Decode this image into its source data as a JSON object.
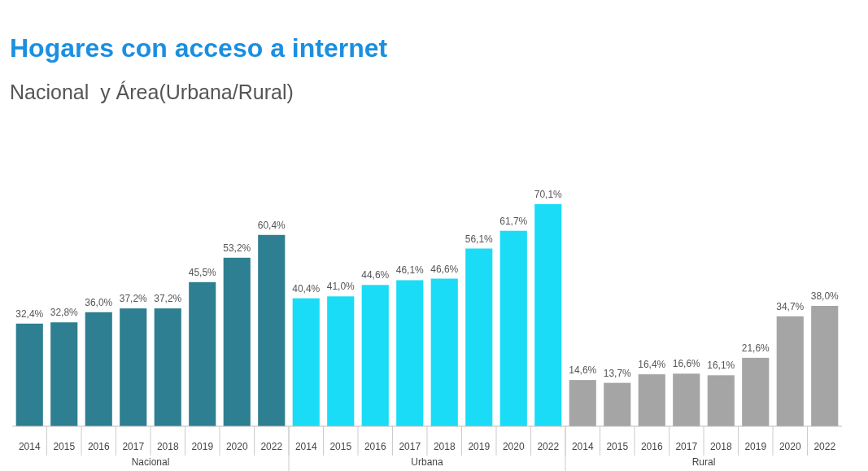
{
  "chart_data": {
    "type": "bar",
    "title": "Hogares con acceso a internet",
    "subtitle": "Nacional  y Área(Urbana/Rural)",
    "stacked": true,
    "categories": [
      "2014",
      "2015",
      "2016",
      "2017",
      "2018",
      "2019",
      "2020",
      "2022",
      "2014",
      "2015",
      "2016",
      "2017",
      "2018",
      "2019",
      "2020",
      "2022",
      "2014",
      "2015",
      "2016",
      "2017",
      "2018",
      "2019",
      "2020",
      "2022"
    ],
    "series": [
      {
        "name": "Nacional",
        "color": "#2e7f91",
        "values": [
          32.4,
          32.8,
          36.0,
          37.2,
          37.2,
          45.5,
          53.2,
          60.4,
          null,
          null,
          null,
          null,
          null,
          null,
          null,
          null,
          null,
          null,
          null,
          null,
          null,
          null,
          null,
          null
        ],
        "value_labels": [
          "32,4%",
          "32,8%",
          "36,0%",
          "37,2%",
          "37,2%",
          "45,5%",
          "53,2%",
          "60,4%",
          null,
          null,
          null,
          null,
          null,
          null,
          null,
          null,
          null,
          null,
          null,
          null,
          null,
          null,
          null,
          null
        ]
      },
      {
        "name": "Urbana",
        "color": "#1adcf7",
        "values": [
          null,
          null,
          null,
          null,
          null,
          null,
          null,
          null,
          40.4,
          41.0,
          44.6,
          46.1,
          46.6,
          56.1,
          61.7,
          70.1,
          null,
          null,
          null,
          null,
          null,
          null,
          null,
          null
        ],
        "value_labels": [
          null,
          null,
          null,
          null,
          null,
          null,
          null,
          null,
          "40,4%",
          "41,0%",
          "44,6%",
          "46,1%",
          "46,6%",
          "56,1%",
          "61,7%",
          "70,1%",
          null,
          null,
          null,
          null,
          null,
          null,
          null,
          null
        ]
      },
      {
        "name": "Rural",
        "color": "#a5a5a5",
        "values": [
          null,
          null,
          null,
          null,
          null,
          null,
          null,
          null,
          null,
          null,
          null,
          null,
          null,
          null,
          null,
          null,
          14.6,
          13.7,
          16.4,
          16.6,
          16.1,
          21.6,
          34.7,
          38.0
        ],
        "value_labels": [
          null,
          null,
          null,
          null,
          null,
          null,
          null,
          null,
          null,
          null,
          null,
          null,
          null,
          null,
          null,
          null,
          "14,6%",
          "13,7%",
          "16,4%",
          "16,6%",
          "16,1%",
          "21,6%",
          "34,7%",
          "38,0%"
        ]
      }
    ]
  }
}
